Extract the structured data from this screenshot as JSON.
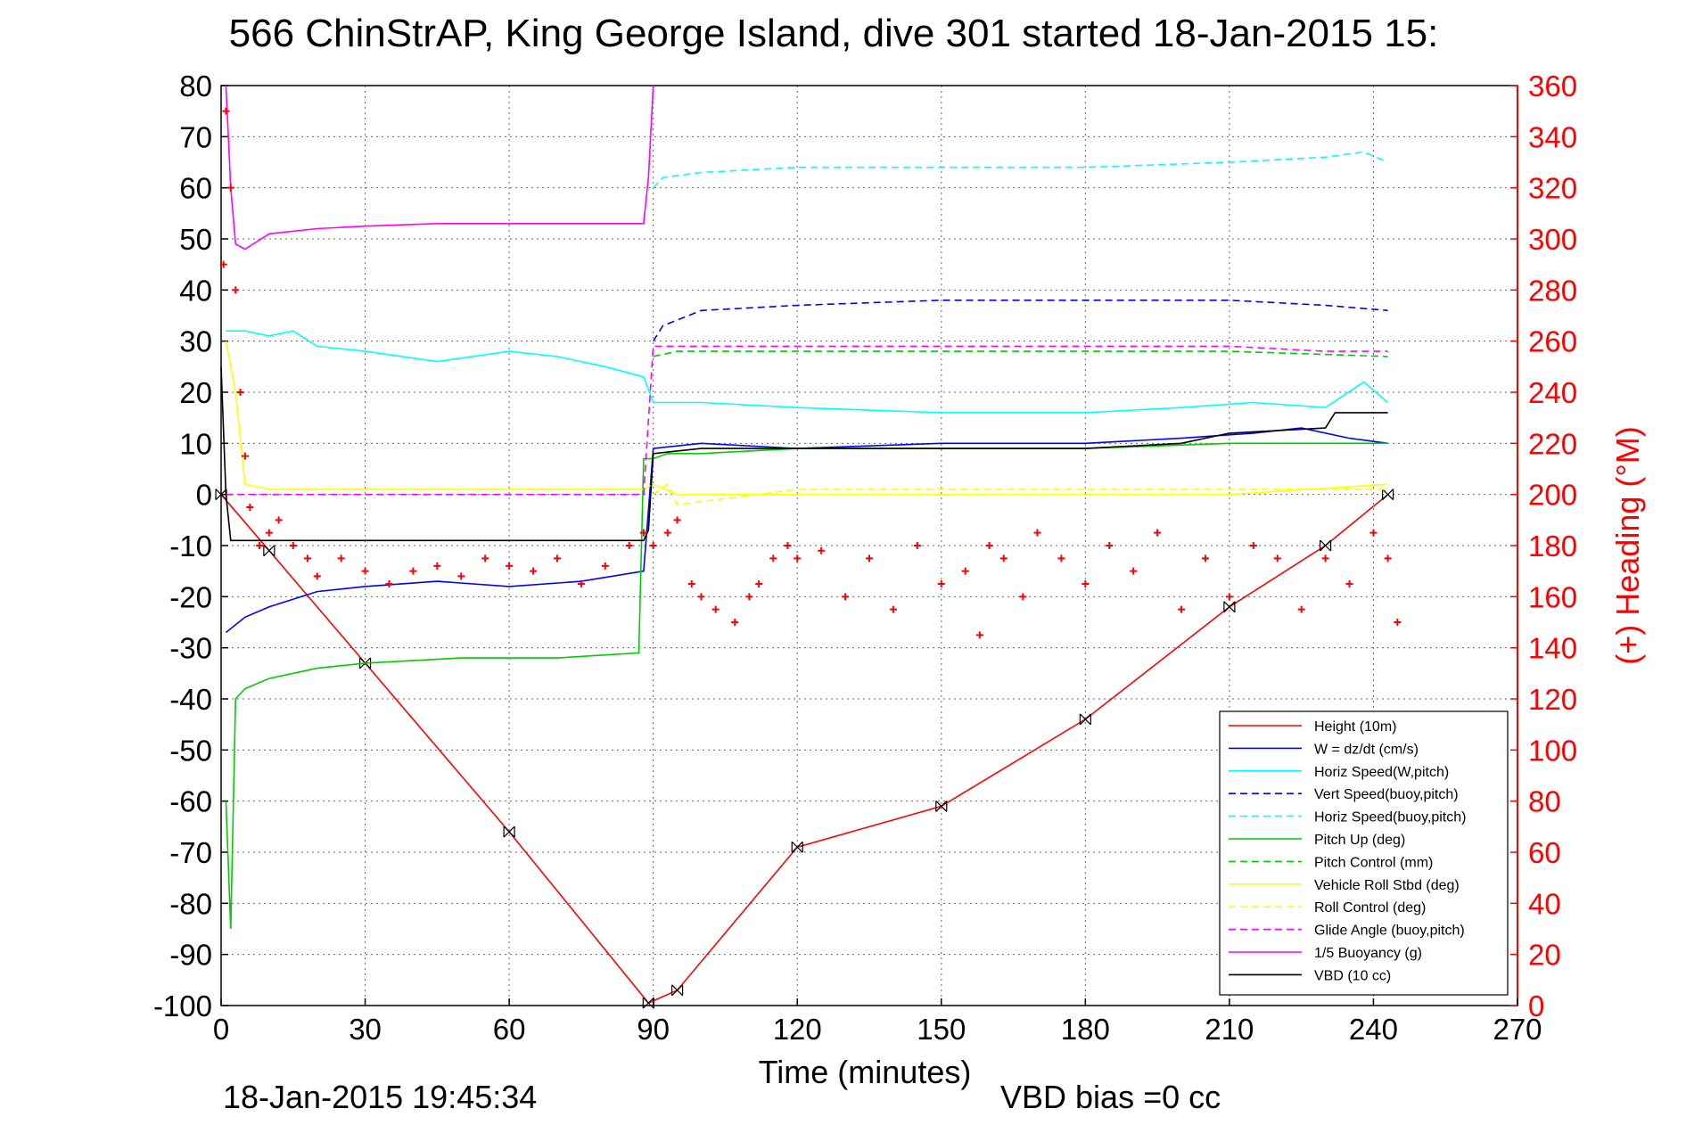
{
  "chart_data": {
    "type": "line",
    "title": "566 ChinStrAP, King George Island, dive 301 started 18-Jan-2015 15:",
    "xlabel": "Time (minutes)",
    "ylabel_right": "(+) Heading (°M)",
    "xlim": [
      0,
      270
    ],
    "ylim_left": [
      -100,
      80
    ],
    "ylim_right": [
      0,
      360
    ],
    "x_ticks": [
      "0",
      "30",
      "60",
      "90",
      "120",
      "150",
      "180",
      "210",
      "240",
      "270"
    ],
    "y_ticks_left": [
      "80",
      "70",
      "60",
      "50",
      "40",
      "30",
      "20",
      "10",
      "0",
      "-10",
      "-20",
      "-30",
      "-40",
      "-50",
      "-60",
      "-70",
      "-80",
      "-90",
      "-100"
    ],
    "y_ticks_right": [
      "360",
      "340",
      "320",
      "300",
      "280",
      "260",
      "240",
      "220",
      "200",
      "180",
      "160",
      "140",
      "120",
      "100",
      "80",
      "60",
      "40",
      "20",
      "0"
    ],
    "grid": true,
    "legend_position": "bottom-right",
    "footer_left": "18-Jan-2015 19:45:34",
    "footer_right": "VBD bias =0 cc",
    "series": [
      {
        "name": "Height (10m)",
        "color": "#ff0000",
        "style": "solid",
        "x": [
          0,
          10,
          30,
          60,
          89,
          95,
          120,
          150,
          180,
          210,
          230,
          243
        ],
        "y": [
          0,
          -11,
          -33,
          -66,
          -99.5,
          -97,
          -69,
          -61,
          -44,
          -22,
          -10,
          0
        ]
      },
      {
        "name": "W = dz/dt (cm/s)",
        "color": "#0000ff",
        "style": "solid",
        "x": [
          1,
          5,
          10,
          20,
          30,
          45,
          60,
          75,
          88,
          90,
          100,
          120,
          150,
          180,
          200,
          215,
          225,
          235,
          243
        ],
        "y": [
          -27,
          -24,
          -22,
          -19,
          -18,
          -17,
          -18,
          -17,
          -15,
          9,
          10,
          9,
          10,
          10,
          11,
          12,
          13,
          11,
          10
        ]
      },
      {
        "name": "Horiz Speed(W,pitch)",
        "color": "#00ffff",
        "style": "solid",
        "x": [
          1,
          5,
          10,
          15,
          20,
          30,
          45,
          60,
          70,
          80,
          88,
          90,
          100,
          120,
          150,
          180,
          200,
          215,
          230,
          238,
          243
        ],
        "y": [
          32,
          32,
          31,
          32,
          29,
          28,
          26,
          28,
          27,
          25,
          23,
          18,
          18,
          17,
          16,
          16,
          17,
          18,
          17,
          22,
          18
        ]
      },
      {
        "name": "Vert Speed(buoy,pitch)",
        "color": "#0000ff",
        "style": "dashed",
        "x": [
          90,
          92,
          100,
          120,
          150,
          180,
          210,
          230,
          243
        ],
        "y": [
          30,
          33,
          36,
          37,
          38,
          38,
          38,
          37,
          36
        ]
      },
      {
        "name": "Horiz Speed(buoy,pitch)",
        "color": "#00ffff",
        "style": "dashed",
        "x": [
          90,
          92,
          100,
          120,
          150,
          180,
          210,
          230,
          238,
          243
        ],
        "y": [
          60,
          62,
          63,
          64,
          64,
          64,
          65,
          66,
          67,
          65
        ]
      },
      {
        "name": "Pitch Up (deg)",
        "color": "#00cc00",
        "style": "solid",
        "x": [
          1,
          2,
          3,
          5,
          10,
          20,
          30,
          50,
          70,
          87,
          88,
          90,
          93,
          100,
          120,
          150,
          180,
          210,
          230,
          243
        ],
        "y": [
          -60,
          -85,
          -40,
          -38,
          -36,
          -34,
          -33,
          -32,
          -32,
          -31,
          7,
          7,
          8,
          8,
          9,
          9,
          9,
          10,
          10,
          10
        ]
      },
      {
        "name": "Pitch Control (mm)",
        "color": "#00cc00",
        "style": "dashed",
        "x": [
          90,
          95,
          120,
          150,
          180,
          210,
          243
        ],
        "y": [
          27,
          28,
          28,
          28,
          28,
          28,
          27
        ]
      },
      {
        "name": "Vehicle Roll Stbd (deg)",
        "color": "#ffff00",
        "style": "solid",
        "x": [
          1,
          3,
          5,
          10,
          30,
          60,
          88,
          90,
          95,
          120,
          150,
          180,
          210,
          243
        ],
        "y": [
          30,
          20,
          2,
          1,
          1,
          1,
          1,
          2,
          0,
          0,
          0,
          0,
          0,
          2
        ]
      },
      {
        "name": "Roll Control (deg)",
        "color": "#ffff00",
        "style": "dashed",
        "x": [
          90,
          93,
          95,
          120,
          150,
          180,
          210,
          243
        ],
        "y": [
          0,
          2,
          -2,
          1,
          1,
          1,
          1,
          1
        ]
      },
      {
        "name": "Glide Angle (buoy,pitch)",
        "color": "#ff00ff",
        "style": "dashed",
        "x": [
          1,
          30,
          60,
          88,
          90,
          100,
          120,
          150,
          180,
          210,
          230,
          243
        ],
        "y": [
          0,
          0,
          0,
          0,
          29,
          29,
          29,
          29,
          29,
          29,
          28,
          28
        ]
      },
      {
        "name": "1/5 Buoyancy (g)",
        "color": "#ff00ff",
        "style": "solid",
        "x": [
          1,
          2,
          3,
          5,
          10,
          20,
          30,
          45,
          60,
          75,
          88,
          89,
          90
        ],
        "y": [
          80,
          60,
          49,
          48,
          51,
          52,
          52.5,
          53,
          53,
          53,
          53,
          62,
          80
        ]
      },
      {
        "name": "VBD (10 cc)",
        "color": "#000000",
        "style": "solid",
        "x": [
          0,
          1,
          2,
          30,
          60,
          88,
          89,
          90,
          100,
          120,
          150,
          180,
          200,
          210,
          230,
          232,
          243
        ],
        "y": [
          25,
          0,
          -9,
          -9,
          -9,
          -9,
          -7,
          8,
          9,
          9,
          9,
          9,
          10,
          12,
          13,
          16,
          16
        ]
      },
      {
        "name": "(+) Heading (°M)",
        "color": "#ff0000",
        "style": "markers",
        "axis": "right",
        "x": [
          0.5,
          1,
          2,
          3,
          4,
          5,
          6,
          8,
          10,
          12,
          15,
          18,
          20,
          25,
          30,
          35,
          40,
          45,
          50,
          55,
          60,
          65,
          70,
          75,
          80,
          85,
          88,
          90,
          93,
          95,
          98,
          100,
          103,
          107,
          110,
          112,
          115,
          118,
          120,
          125,
          130,
          135,
          140,
          145,
          150,
          155,
          158,
          160,
          163,
          167,
          170,
          175,
          180,
          185,
          190,
          195,
          200,
          205,
          210,
          215,
          220,
          225,
          230,
          235,
          240,
          243,
          245
        ],
        "y": [
          290,
          350,
          320,
          280,
          240,
          215,
          195,
          180,
          185,
          190,
          180,
          175,
          168,
          175,
          170,
          165,
          170,
          172,
          168,
          175,
          172,
          170,
          175,
          165,
          172,
          180,
          185,
          180,
          185,
          190,
          165,
          160,
          155,
          150,
          160,
          165,
          175,
          180,
          175,
          178,
          160,
          175,
          155,
          180,
          165,
          170,
          145,
          180,
          175,
          160,
          185,
          175,
          165,
          180,
          170,
          185,
          155,
          175,
          160,
          180,
          175,
          155,
          175,
          165,
          185,
          175,
          150
        ]
      }
    ]
  }
}
